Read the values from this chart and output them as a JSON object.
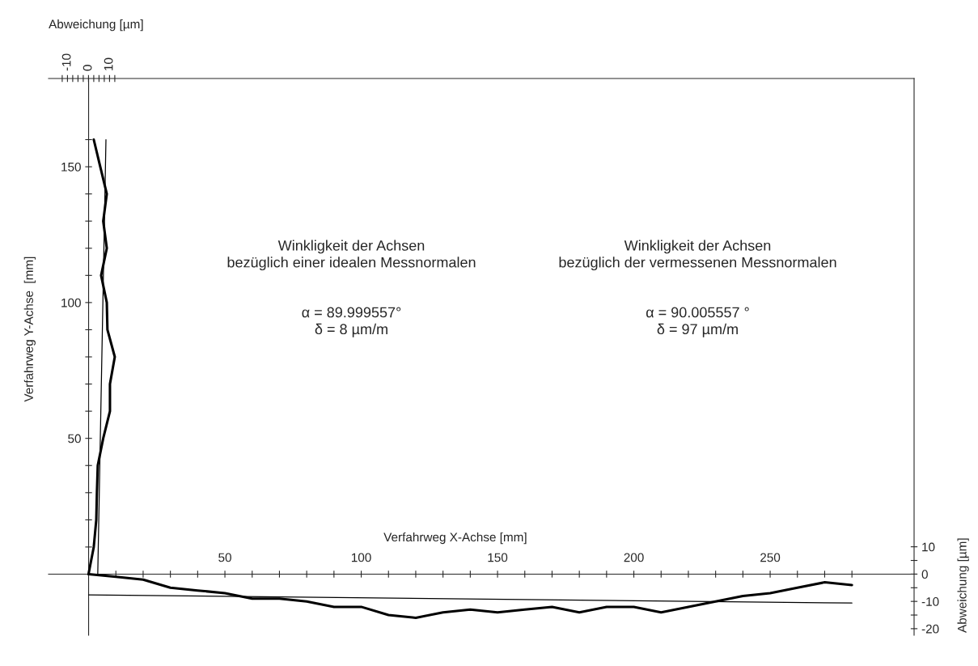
{
  "chart_data": {
    "type": "line",
    "xlabel": "Verfahrweg X-Achse [mm]",
    "ylabel": "Verfahrweg Y-Achse  [mm]",
    "x2label": "Abweichung [µm]",
    "y2label": "Abweichung [µm]",
    "xlim": [
      -14.7,
      302.8
    ],
    "ylim": [
      -22.5,
      182.5
    ],
    "x2lim": [
      -19,
      392.5
    ],
    "y2lim": [
      -22.4,
      181.5
    ],
    "xticks": [
      {
        "value": 10,
        "label": null
      },
      {
        "value": 20,
        "label": null
      },
      {
        "value": 30,
        "label": null
      },
      {
        "value": 40,
        "label": null
      },
      50,
      {
        "value": 60,
        "label": null
      },
      {
        "value": 70,
        "label": null
      },
      {
        "value": 80,
        "label": null
      },
      {
        "value": 90,
        "label": null
      },
      100,
      {
        "value": 110,
        "label": null
      },
      {
        "value": 120,
        "label": null
      },
      {
        "value": 130,
        "label": null
      },
      {
        "value": 140,
        "label": null
      },
      150,
      {
        "value": 160,
        "label": null
      },
      {
        "value": 170,
        "label": null
      },
      {
        "value": 180,
        "label": null
      },
      {
        "value": 190,
        "label": null
      },
      200,
      {
        "value": 210,
        "label": null
      },
      {
        "value": 220,
        "label": null
      },
      {
        "value": 230,
        "label": null
      },
      {
        "value": 240,
        "label": null
      },
      250,
      {
        "value": 260,
        "label": null
      },
      {
        "value": 270,
        "label": null
      },
      {
        "value": 280,
        "label": null
      }
    ],
    "yticks": [
      {
        "value": 10,
        "label": null
      },
      {
        "value": 20,
        "label": null
      },
      {
        "value": 30,
        "label": null
      },
      {
        "value": 40,
        "label": null
      },
      50,
      {
        "value": 60,
        "label": null
      },
      {
        "value": 70,
        "label": null
      },
      {
        "value": 80,
        "label": null
      },
      {
        "value": 90,
        "label": null
      },
      100,
      {
        "value": 110,
        "label": null
      },
      {
        "value": 120,
        "label": null
      },
      {
        "value": 130,
        "label": null
      },
      {
        "value": 140,
        "label": null
      },
      150,
      {
        "value": 160,
        "label": null
      }
    ],
    "x2ticks": [
      {
        "value": -12.5,
        "label": null
      },
      -10,
      {
        "value": -7.5,
        "label": null
      },
      {
        "value": -5,
        "label": null
      },
      {
        "value": -2.5,
        "label": null
      },
      0,
      {
        "value": 2.5,
        "label": null
      },
      {
        "value": 5,
        "label": null
      },
      {
        "value": 7.5,
        "label": null
      },
      10,
      {
        "value": 12.5,
        "label": null
      }
    ],
    "y2ticks": [
      -20,
      {
        "value": -15,
        "label": null
      },
      -10,
      {
        "value": -5,
        "label": null
      },
      0,
      {
        "value": 5,
        "label": null
      },
      10
    ],
    "grid": false,
    "legend": false,
    "marker": "none",
    "line_style": "solid",
    "series": [
      {
        "color": "#000000",
        "axis": "y2",
        "x": [
          0,
          10,
          20,
          30,
          40,
          50,
          60,
          70,
          80,
          90,
          100,
          110,
          120,
          130,
          140,
          150,
          160,
          170,
          180,
          190,
          200,
          210,
          220,
          230,
          240,
          250,
          260,
          270,
          280
        ],
        "values": [
          0,
          -1,
          -2,
          -5,
          -6,
          -7,
          -9,
          -9,
          -10,
          -12,
          -12,
          -15,
          -16,
          -14,
          -13,
          -14,
          -13,
          -12,
          -14,
          -12,
          -12,
          -14,
          -12,
          -10,
          -8,
          -7,
          -5,
          -3,
          -4
        ]
      },
      {
        "color": "#000000",
        "axis": "x2",
        "x": [
          0,
          2.5,
          3.7,
          4,
          4.4,
          7,
          10.2,
          10.2,
          12.5,
          9,
          8.7,
          6,
          8.7,
          7,
          8.7,
          5.6,
          2.5
        ],
        "values": [
          0,
          10,
          20,
          30,
          40,
          50,
          60,
          70,
          80,
          90,
          100,
          110,
          120,
          130,
          140,
          150,
          160
        ]
      },
      {
        "color": "#000000",
        "axis": "y2",
        "x": [
          0,
          280
        ],
        "values": [
          -7.6,
          -10.6
        ]
      },
      {
        "color": "#000000",
        "axis": "x2",
        "x": [
          4.4,
          8.3
        ],
        "values": [
          0,
          160
        ]
      }
    ],
    "annotations": [
      "Winkligkeit der Achsen\nbezüglich einer idealen Messnormalen",
      "α = 89.999557°\nδ = 8 µm/m",
      "Winkligkeit der Achsen\nbezüglich der vermessenen Messnormalen",
      "α = 90.005557 °\nδ = 97 µm/m"
    ]
  }
}
